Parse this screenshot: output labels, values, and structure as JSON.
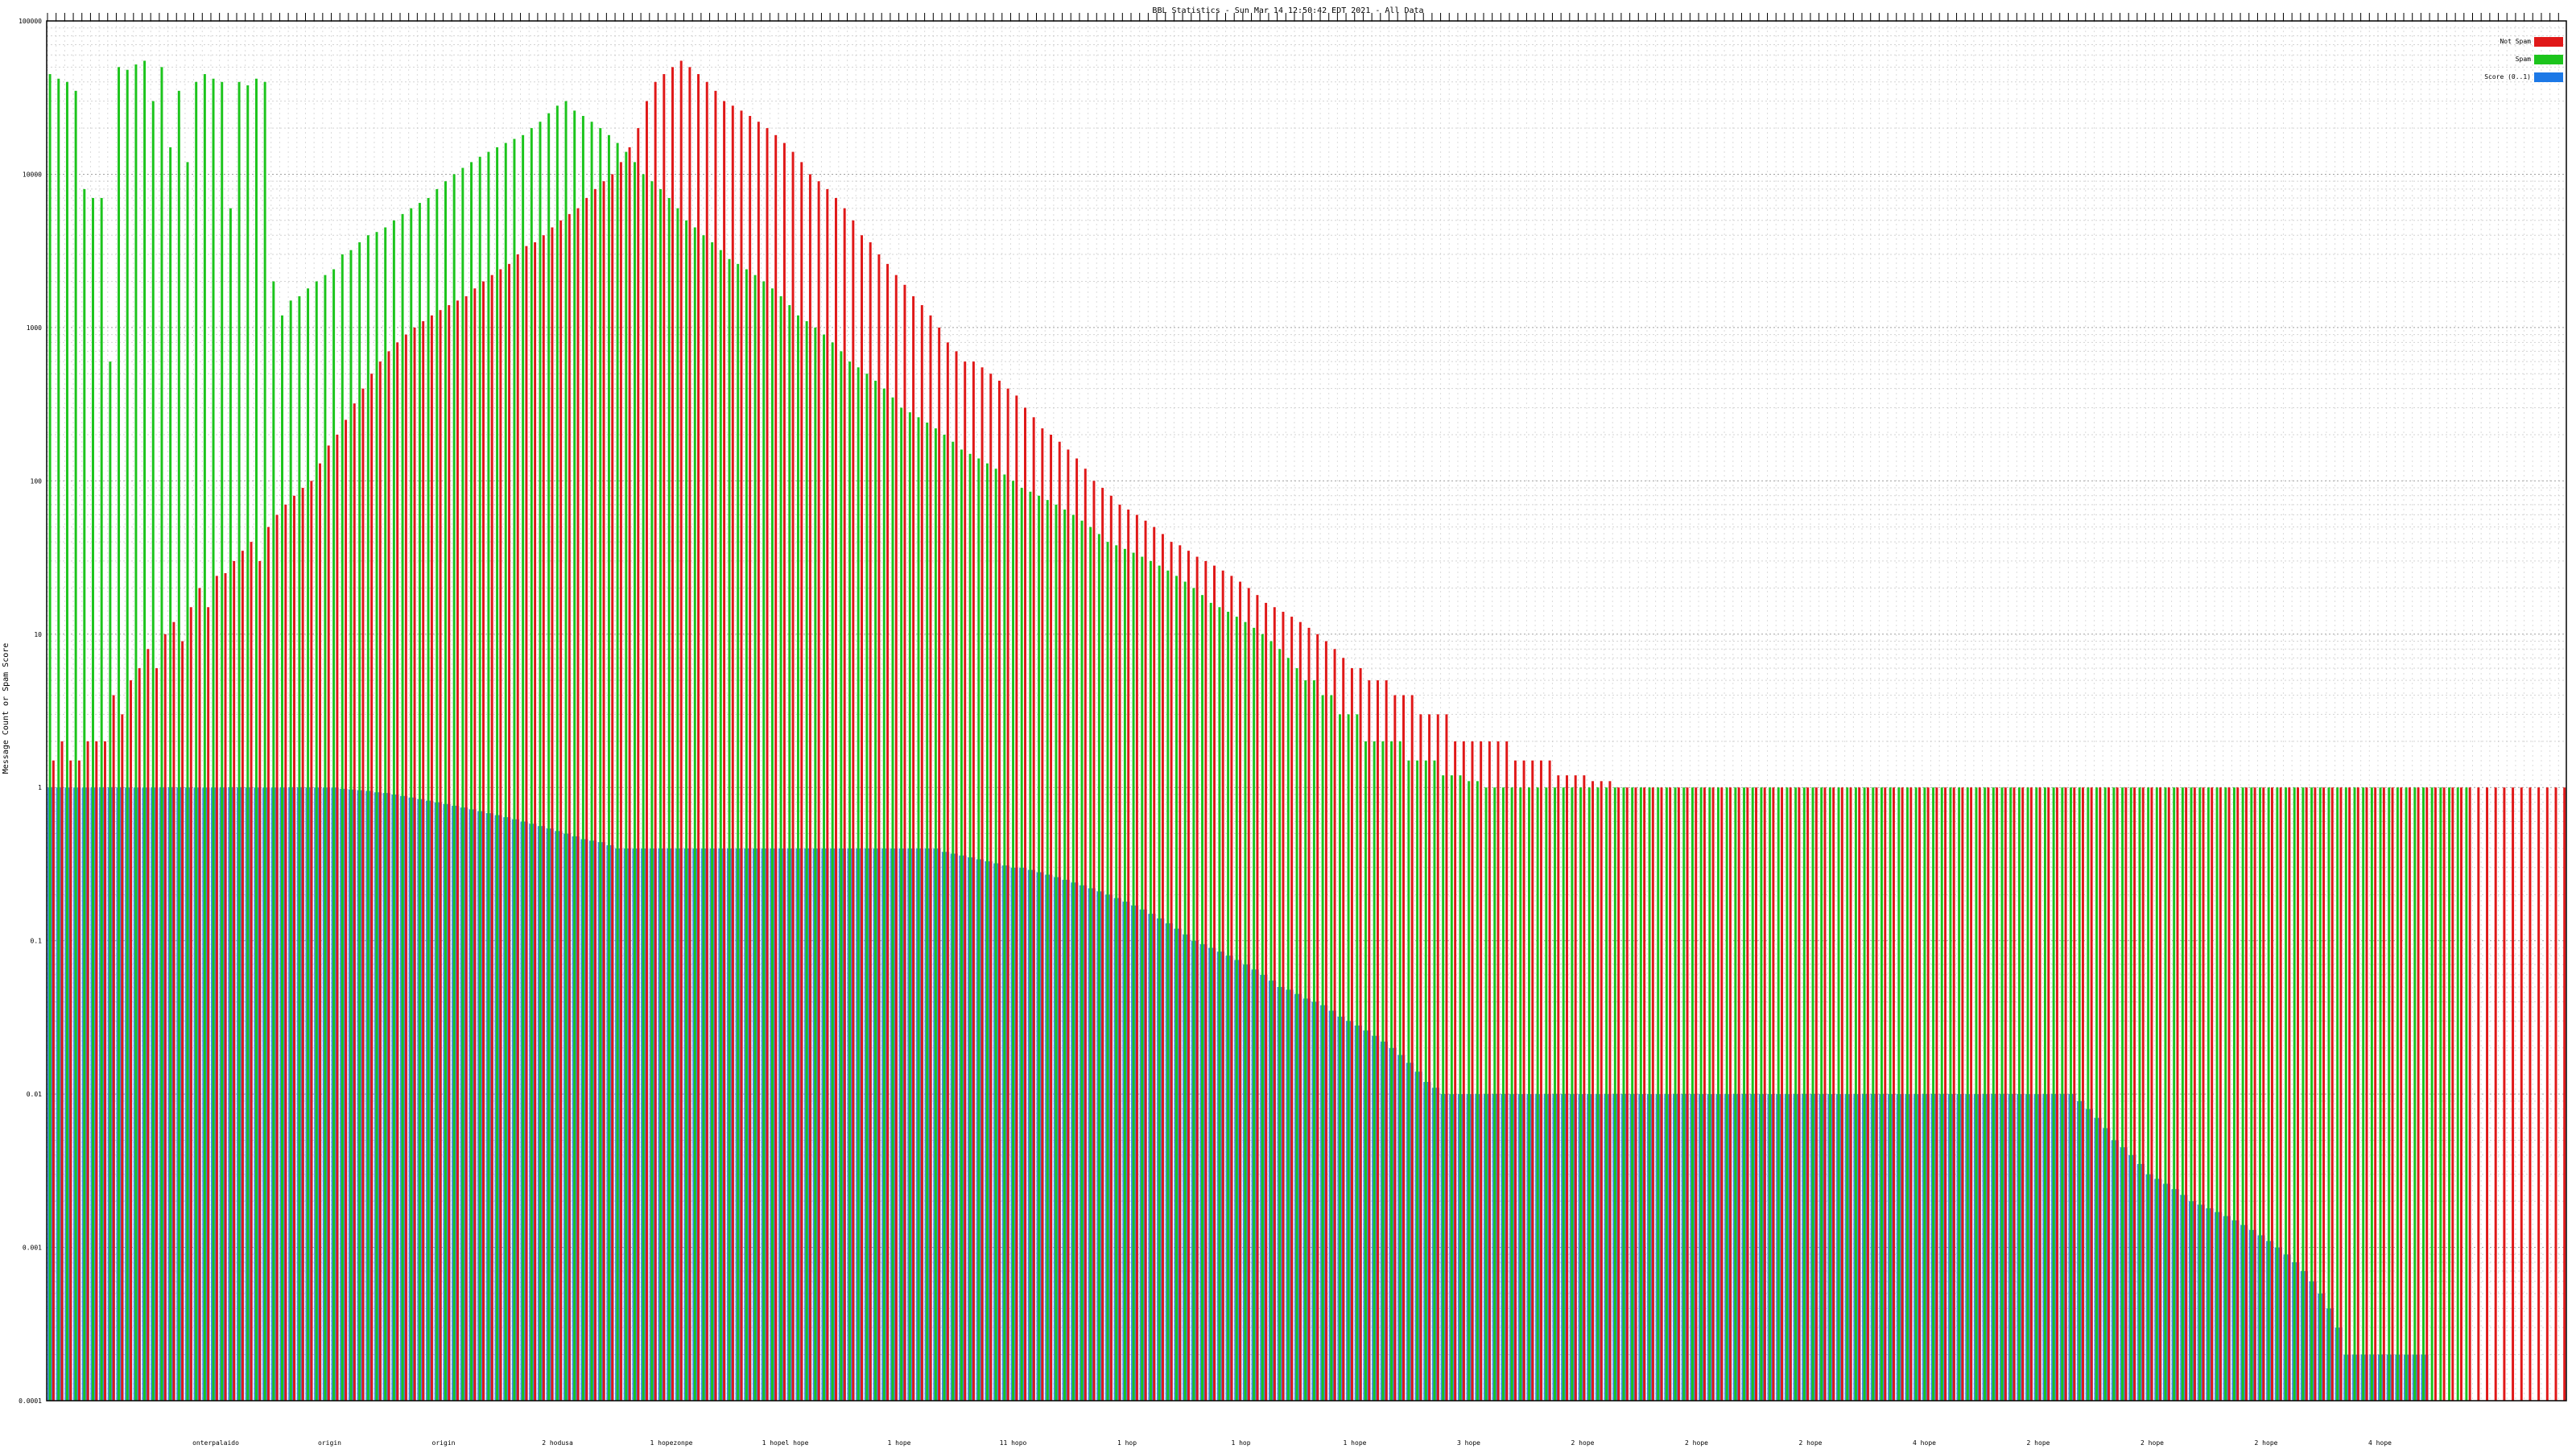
{
  "chart_data": {
    "type": "bar",
    "title": "BBL Statistics - Sun Mar 14 12:50:42 EDT 2021 - All Data",
    "ylabel": "Message Count or Spam Score",
    "xlabel": "",
    "yscale": "log",
    "ylim": [
      0.0001,
      100000
    ],
    "yticks": [
      0.0001,
      0.001,
      0.01,
      0.1,
      1,
      10,
      100,
      1000,
      10000,
      100000
    ],
    "ytick_labels": [
      "0.0001",
      "0.001",
      "0.01",
      "0.1",
      "1",
      "10",
      "100",
      "1000",
      "10000",
      "100000"
    ],
    "grid": true,
    "legend_position": "top-right",
    "series": [
      {
        "name": "Not Spam",
        "color": "#e01818",
        "values": [
          1.5,
          2,
          1.5,
          1.5,
          2,
          2,
          2,
          4,
          3,
          5,
          6,
          8,
          6,
          10,
          12,
          9,
          15,
          20,
          15,
          24,
          25,
          30,
          35,
          40,
          30,
          50,
          60,
          70,
          80,
          90,
          100,
          130,
          170,
          200,
          250,
          320,
          400,
          500,
          600,
          700,
          800,
          900,
          1000,
          1100,
          1200,
          1300,
          1400,
          1500,
          1600,
          1800,
          2000,
          2200,
          2400,
          2600,
          3000,
          3400,
          3600,
          4000,
          4500,
          5000,
          5500,
          6000,
          7000,
          8000,
          9000,
          10000,
          12000,
          15000,
          20000,
          30000,
          40000,
          45000,
          50000,
          55000,
          50000,
          45000,
          40000,
          35000,
          30000,
          28000,
          26000,
          24000,
          22000,
          20000,
          18000,
          16000,
          14000,
          12000,
          10000,
          9000,
          8000,
          7000,
          6000,
          5000,
          4000,
          3600,
          3000,
          2600,
          2200,
          1900,
          1600,
          1400,
          1200,
          1000,
          800,
          700,
          600,
          600,
          550,
          500,
          450,
          400,
          360,
          300,
          260,
          220,
          200,
          180,
          160,
          140,
          120,
          100,
          90,
          80,
          70,
          65,
          60,
          55,
          50,
          45,
          40,
          38,
          35,
          32,
          30,
          28,
          26,
          24,
          22,
          20,
          18,
          16,
          15,
          14,
          13,
          12,
          11,
          10,
          9,
          8,
          7,
          6,
          6,
          5,
          5,
          5,
          4,
          4,
          4,
          3,
          3,
          3,
          3,
          2,
          2,
          2,
          2,
          2,
          2,
          2,
          1.5,
          1.5,
          1.5,
          1.5,
          1.5,
          1.2,
          1.2,
          1.2,
          1.2,
          1.1,
          1.1,
          1.1,
          1,
          1,
          1,
          1,
          1,
          1,
          1,
          1,
          1,
          1,
          1,
          1,
          1,
          1,
          1,
          1,
          1,
          1,
          1,
          1,
          1,
          1,
          1,
          1,
          1,
          1,
          1,
          1,
          1,
          1,
          1,
          1,
          1,
          1,
          1,
          1,
          1,
          1,
          1,
          1,
          1,
          1,
          1,
          1,
          1,
          1,
          1,
          1,
          1,
          1,
          1,
          1,
          1,
          1,
          1,
          1,
          1,
          1,
          1,
          1,
          1,
          1,
          1,
          1,
          1,
          1,
          1,
          1,
          1,
          1,
          1,
          1,
          1,
          1,
          1,
          1,
          1,
          1,
          1,
          1,
          1,
          1,
          1,
          1,
          1,
          1,
          1,
          1,
          1,
          1,
          1,
          1,
          1,
          1,
          1,
          1,
          1,
          1,
          1,
          1,
          1,
          1,
          1,
          1,
          1,
          1,
          1,
          1,
          1,
          1,
          1
        ]
      },
      {
        "name": "Spam",
        "color": "#1cc41c",
        "values": [
          45000,
          42000,
          40000,
          35000,
          8000,
          7000,
          7000,
          600,
          50000,
          48000,
          52000,
          55000,
          30000,
          50000,
          15000,
          35000,
          12000,
          40000,
          45000,
          42000,
          40000,
          6000,
          40000,
          38000,
          42000,
          40000,
          2000,
          1200,
          1500,
          1600,
          1800,
          2000,
          2200,
          2400,
          3000,
          3200,
          3600,
          4000,
          4200,
          4500,
          5000,
          5500,
          6000,
          6500,
          7000,
          8000,
          9000,
          10000,
          11000,
          12000,
          13000,
          14000,
          15000,
          16000,
          17000,
          18000,
          20000,
          22000,
          25000,
          28000,
          30000,
          26000,
          24000,
          22000,
          20000,
          18000,
          16000,
          14000,
          12000,
          10000,
          9000,
          8000,
          7000,
          6000,
          5000,
          4500,
          4000,
          3600,
          3200,
          2800,
          2600,
          2400,
          2200,
          2000,
          1800,
          1600,
          1400,
          1200,
          1100,
          1000,
          900,
          800,
          700,
          600,
          550,
          500,
          450,
          400,
          350,
          300,
          280,
          260,
          240,
          220,
          200,
          180,
          160,
          150,
          140,
          130,
          120,
          110,
          100,
          90,
          85,
          80,
          75,
          70,
          65,
          60,
          55,
          50,
          45,
          40,
          38,
          36,
          34,
          32,
          30,
          28,
          26,
          24,
          22,
          20,
          18,
          16,
          15,
          14,
          13,
          12,
          11,
          10,
          9,
          8,
          7,
          6,
          5,
          5,
          4,
          4,
          3,
          3,
          3,
          2,
          2,
          2,
          2,
          2,
          1.5,
          1.5,
          1.5,
          1.5,
          1.2,
          1.2,
          1.2,
          1.1,
          1.1,
          1,
          1,
          1,
          1,
          1,
          1,
          1,
          1,
          1,
          1,
          1,
          1,
          1,
          1,
          1,
          1,
          1,
          1,
          1,
          1,
          1,
          1,
          1,
          1,
          1,
          1,
          1,
          1,
          1,
          1,
          1,
          1,
          1,
          1,
          1,
          1,
          1,
          1,
          1,
          1,
          1,
          1,
          1,
          1,
          1,
          1,
          1,
          1,
          1,
          1,
          1,
          1,
          1,
          1,
          1,
          1,
          1,
          1,
          1,
          1,
          1,
          1,
          1,
          1,
          1,
          1,
          1,
          1,
          1,
          1,
          1,
          1,
          1,
          1,
          1,
          1,
          1,
          1,
          1,
          1,
          1,
          1,
          1,
          1,
          1,
          1,
          1,
          1,
          1,
          1,
          1,
          1,
          1,
          1,
          1,
          1,
          1,
          1,
          1,
          1,
          1,
          1,
          1,
          1,
          1,
          1,
          1,
          1,
          1,
          1,
          1,
          1,
          1,
          1,
          1
        ]
      },
      {
        "name": "Score (0..1)",
        "color": "#1c78e6",
        "values": [
          1,
          1,
          1,
          1,
          1,
          1,
          1,
          1,
          1,
          1,
          1,
          1,
          1,
          1,
          1,
          1,
          1,
          1,
          1,
          1,
          1,
          1,
          1,
          1,
          1,
          1,
          1,
          1,
          1,
          1,
          1,
          1,
          1,
          1,
          0.98,
          0.97,
          0.96,
          0.95,
          0.93,
          0.92,
          0.9,
          0.88,
          0.86,
          0.84,
          0.82,
          0.8,
          0.78,
          0.76,
          0.74,
          0.72,
          0.7,
          0.68,
          0.66,
          0.64,
          0.62,
          0.6,
          0.58,
          0.56,
          0.54,
          0.52,
          0.5,
          0.48,
          0.46,
          0.45,
          0.44,
          0.42,
          0.4,
          0.4,
          0.4,
          0.4,
          0.4,
          0.4,
          0.4,
          0.4,
          0.4,
          0.4,
          0.4,
          0.4,
          0.4,
          0.4,
          0.4,
          0.4,
          0.4,
          0.4,
          0.4,
          0.4,
          0.4,
          0.4,
          0.4,
          0.4,
          0.4,
          0.4,
          0.4,
          0.4,
          0.4,
          0.4,
          0.4,
          0.4,
          0.4,
          0.4,
          0.4,
          0.4,
          0.4,
          0.4,
          0.38,
          0.37,
          0.36,
          0.35,
          0.34,
          0.33,
          0.32,
          0.31,
          0.3,
          0.3,
          0.29,
          0.28,
          0.27,
          0.26,
          0.25,
          0.24,
          0.23,
          0.22,
          0.21,
          0.2,
          0.19,
          0.18,
          0.17,
          0.16,
          0.15,
          0.14,
          0.13,
          0.12,
          0.11,
          0.1,
          0.095,
          0.09,
          0.085,
          0.08,
          0.075,
          0.07,
          0.065,
          0.06,
          0.055,
          0.05,
          0.048,
          0.045,
          0.042,
          0.04,
          0.038,
          0.035,
          0.032,
          0.03,
          0.028,
          0.026,
          0.024,
          0.022,
          0.02,
          0.018,
          0.016,
          0.014,
          0.012,
          0.011,
          0.01,
          0.01,
          0.01,
          0.01,
          0.01,
          0.01,
          0.01,
          0.01,
          0.01,
          0.01,
          0.01,
          0.01,
          0.01,
          0.01,
          0.01,
          0.01,
          0.01,
          0.01,
          0.01,
          0.01,
          0.01,
          0.01,
          0.01,
          0.01,
          0.01,
          0.01,
          0.01,
          0.01,
          0.01,
          0.01,
          0.01,
          0.01,
          0.01,
          0.01,
          0.01,
          0.01,
          0.01,
          0.01,
          0.01,
          0.01,
          0.01,
          0.01,
          0.01,
          0.01,
          0.01,
          0.01,
          0.01,
          0.01,
          0.01,
          0.01,
          0.01,
          0.01,
          0.01,
          0.01,
          0.01,
          0.01,
          0.01,
          0.01,
          0.01,
          0.01,
          0.01,
          0.01,
          0.01,
          0.01,
          0.01,
          0.01,
          0.01,
          0.01,
          0.01,
          0.01,
          0.01,
          0.01,
          0.01,
          0.01,
          0.009,
          0.008,
          0.007,
          0.006,
          0.005,
          0.0045,
          0.004,
          0.0035,
          0.003,
          0.0028,
          0.0026,
          0.0024,
          0.0022,
          0.002,
          0.0019,
          0.0018,
          0.0017,
          0.0016,
          0.0015,
          0.0014,
          0.0013,
          0.0012,
          0.0011,
          0.001,
          0.0009,
          0.0008,
          0.0007,
          0.0006,
          0.0005,
          0.0004,
          0.0003,
          0.0002,
          0.0002,
          0.0002,
          0.0002,
          0.0002,
          0.0002,
          0.0002,
          0.0002,
          0.0002,
          0.0002
        ]
      }
    ],
    "x_group_labels": [
      "onterpalaido",
      "origin",
      "origin",
      "2 hodusa",
      "1 hopezonpe",
      "1 hopel hope",
      "1 hope",
      "11 hopo",
      "1 hop",
      "1 hop",
      "1 hope",
      "3 hope",
      "2 hope",
      "2 hope",
      "2 hope",
      "4 hope",
      "2 hope",
      "2 hope",
      "2 hope",
      "4 hope"
    ]
  }
}
